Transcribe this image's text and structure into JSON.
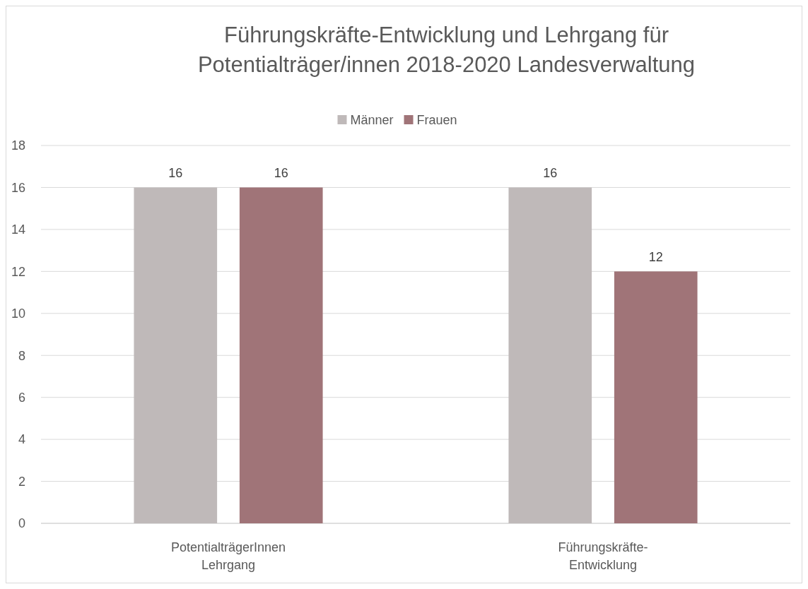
{
  "chart_data": {
    "type": "bar",
    "title": "Führungskräfte-Entwicklung und Lehrgang für Potentialträger/innen 2018-2020 Landesverwaltung",
    "categories": [
      "PotentialträgerInnen Lehrgang",
      "Führungskräfte-Entwicklung"
    ],
    "series": [
      {
        "name": "Männer",
        "color": "#bfb9b9",
        "values": [
          16,
          16
        ]
      },
      {
        "name": "Frauen",
        "color": "#a07478",
        "values": [
          16,
          12
        ]
      }
    ],
    "ylim": [
      0,
      18
    ],
    "yticks": [
      0,
      2,
      4,
      6,
      8,
      10,
      12,
      14,
      16,
      18
    ],
    "grid": "y",
    "legend": "top",
    "data_labels": true
  }
}
